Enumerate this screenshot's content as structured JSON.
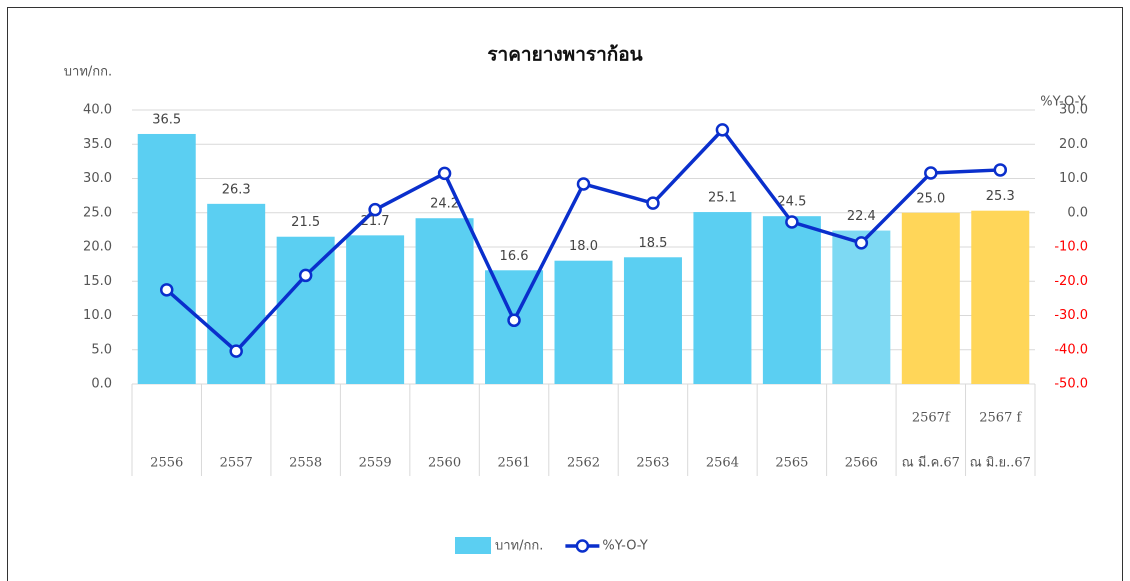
{
  "chart_data": {
    "type": "bar-line",
    "title": "ราคายางพาราก้อน",
    "y_label": "บาท/กก.",
    "y2_label": "%Y-O-Y",
    "categories": [
      [
        "2556"
      ],
      [
        "2557"
      ],
      [
        "2558"
      ],
      [
        "2559"
      ],
      [
        "2560"
      ],
      [
        "2561"
      ],
      [
        "2562"
      ],
      [
        "2563"
      ],
      [
        "2564"
      ],
      [
        "2565"
      ],
      [
        "2566"
      ],
      [
        "2567f",
        "ณ มี.ค.67"
      ],
      [
        "2567 f",
        "ณ มิ.ย..67"
      ]
    ],
    "series": [
      {
        "name": "บาท/กก.",
        "type": "bar",
        "color": "#5bcff2",
        "colors": [
          "#5bcff2",
          "#5bcff2",
          "#5bcff2",
          "#5bcff2",
          "#5bcff2",
          "#5bcff2",
          "#5bcff2",
          "#5bcff2",
          "#5bcff2",
          "#5bcff2",
          "#7dd9f3",
          "#ffd659",
          "#ffd659"
        ],
        "values": [
          36.5,
          26.3,
          21.5,
          21.7,
          24.2,
          16.6,
          18.0,
          18.5,
          25.1,
          24.5,
          22.4,
          25.0,
          25.3
        ],
        "value_labels": [
          "36.5",
          "26.3",
          "21.5",
          "21.7",
          "24.2",
          "16.6",
          "18.0",
          "18.5",
          "25.1",
          "24.5",
          "22.4",
          "25.0",
          "25.3"
        ]
      },
      {
        "name": "%Y-O-Y",
        "type": "line",
        "axis": "y2",
        "color": "#0a2fcc",
        "values": [
          -22.5,
          -40.4,
          -18.3,
          0.9,
          11.5,
          -31.4,
          8.4,
          2.8,
          24.2,
          -2.7,
          -8.8,
          11.6,
          12.5
        ]
      }
    ],
    "ylim": [
      0,
      40
    ],
    "yticks": [
      {
        "value": 0,
        "label": "0.0"
      },
      {
        "value": 5,
        "label": "5.0"
      },
      {
        "value": 10,
        "label": "10.0"
      },
      {
        "value": 15,
        "label": "15.0"
      },
      {
        "value": 20,
        "label": "20.0"
      },
      {
        "value": 25,
        "label": "25.0"
      },
      {
        "value": 30,
        "label": "30.0"
      },
      {
        "value": 35,
        "label": "35.0"
      },
      {
        "value": 40,
        "label": "40.0"
      }
    ],
    "y2lim": [
      -50,
      30
    ],
    "y2ticks": [
      {
        "value": -50,
        "label": "-50.0"
      },
      {
        "value": -40,
        "label": "-40.0"
      },
      {
        "value": -30,
        "label": "-30.0"
      },
      {
        "value": -20,
        "label": "-20.0"
      },
      {
        "value": -10,
        "label": "-10.0"
      },
      {
        "value": 0,
        "label": "0.0"
      },
      {
        "value": 10,
        "label": "10.0"
      },
      {
        "value": 20,
        "label": "20.0"
      },
      {
        "value": 30,
        "label": "30.0"
      }
    ],
    "y2_negative_color": "#ff0000",
    "grid": true,
    "legend": "bottom"
  }
}
